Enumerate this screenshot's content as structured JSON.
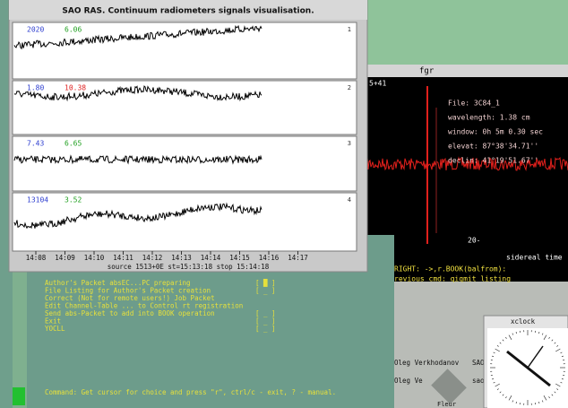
{
  "plot_window": {
    "title": "SAO RAS. Continuum radiometers signals visualisation.",
    "panels": [
      {
        "left": "2020",
        "mid": "6.06",
        "index": "1"
      },
      {
        "left": "1.80",
        "mid": "10.38",
        "index": "2"
      },
      {
        "left": "7.43",
        "mid": "6.65",
        "index": "3"
      },
      {
        "left": "13104",
        "mid": "3.52",
        "index": "4"
      }
    ],
    "time_labels": [
      "14:08",
      "14:09",
      "14:10",
      "14:11",
      "14:12",
      "14:13",
      "14:14",
      "14:15",
      "14:16",
      "14:17"
    ],
    "footer": "source 1513+0E  st=15:13:18  stop 15:14:18"
  },
  "image_window": {
    "title": "fgr",
    "corner": "5+41",
    "info": [
      "File: 3C84_1",
      "wavelength:  1.38 cm",
      "window: 0h 5m 0.30 sec",
      "elevat: 87°38'34.71''",
      "declin: 41°19'51.67''"
    ],
    "scale_label": "20-",
    "axis_label": "sidereal time",
    "status": [
      "RIGHT: ->,r.BOOK(balfrom):",
      "revious cmd: qiqmit listing"
    ]
  },
  "terminal": {
    "menu": [
      {
        "text": "Author's Packet absEC...PC preparing",
        "marker": "[ █ ]"
      },
      {
        "text": "File Listing for Author's Packet creation",
        "marker": "[ _ ]"
      },
      {
        "text": "Correct (Not for remote users!)      Job Packet"
      },
      {
        "text": "Edit Channel-Table ... to Control rt registration"
      },
      {
        "text": "Send abs-Packet to add into BOOK operation",
        "marker": "[ _ ]"
      },
      {
        "text": "Exit",
        "marker": "[ _ ]"
      },
      {
        "text": "YOCLL",
        "marker": "[ _ ]"
      }
    ],
    "command": "Command: Get cursor for choice and press \"r\", ctrl/c - exit, ? - manual."
  },
  "desktop": {
    "users": [
      "Oleg Verkhodanov",
      "SAO",
      "Oleg Ve",
      "sao"
    ],
    "icon_label": "Fleur",
    "clock_title": "xclock"
  }
}
